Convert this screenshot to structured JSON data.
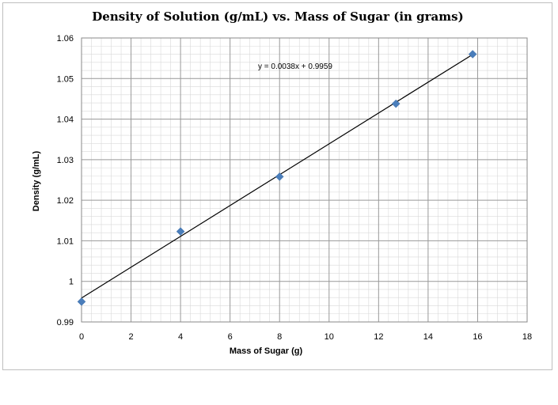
{
  "chart_data": {
    "type": "scatter",
    "title": "Density of Solution (g/mL) vs. Mass of Sugar (in grams)",
    "xlabel": "Mass of Sugar (g)",
    "ylabel": "Density (g/mL)",
    "xlim": [
      0,
      18
    ],
    "ylim": [
      0.99,
      1.06
    ],
    "x_ticks": [
      0,
      2,
      4,
      6,
      8,
      10,
      12,
      14,
      16,
      18
    ],
    "y_ticks": [
      0.99,
      1,
      1.01,
      1.02,
      1.03,
      1.04,
      1.05,
      1.06
    ],
    "x_tick_labels": [
      "0",
      "2",
      "4",
      "6",
      "8",
      "10",
      "12",
      "14",
      "16",
      "18"
    ],
    "y_tick_labels": [
      "0.99",
      "1",
      "1.01",
      "1.02",
      "1.03",
      "1.04",
      "1.05",
      "1.06"
    ],
    "grid": true,
    "minor_grid": true,
    "legend": "none",
    "series": [
      {
        "x": [
          0,
          4,
          8,
          12.7,
          15.8
        ],
        "y": [
          0.995,
          1.0123,
          1.0258,
          1.0438,
          1.056
        ],
        "marker": "diamond",
        "color": "#4a7ebb"
      }
    ],
    "trendline": {
      "slope": 0.0038,
      "intercept": 0.9959,
      "x_range": [
        0,
        15.8
      ],
      "equation": "y = 0.0038x + 0.9959",
      "color": "#000000"
    }
  }
}
